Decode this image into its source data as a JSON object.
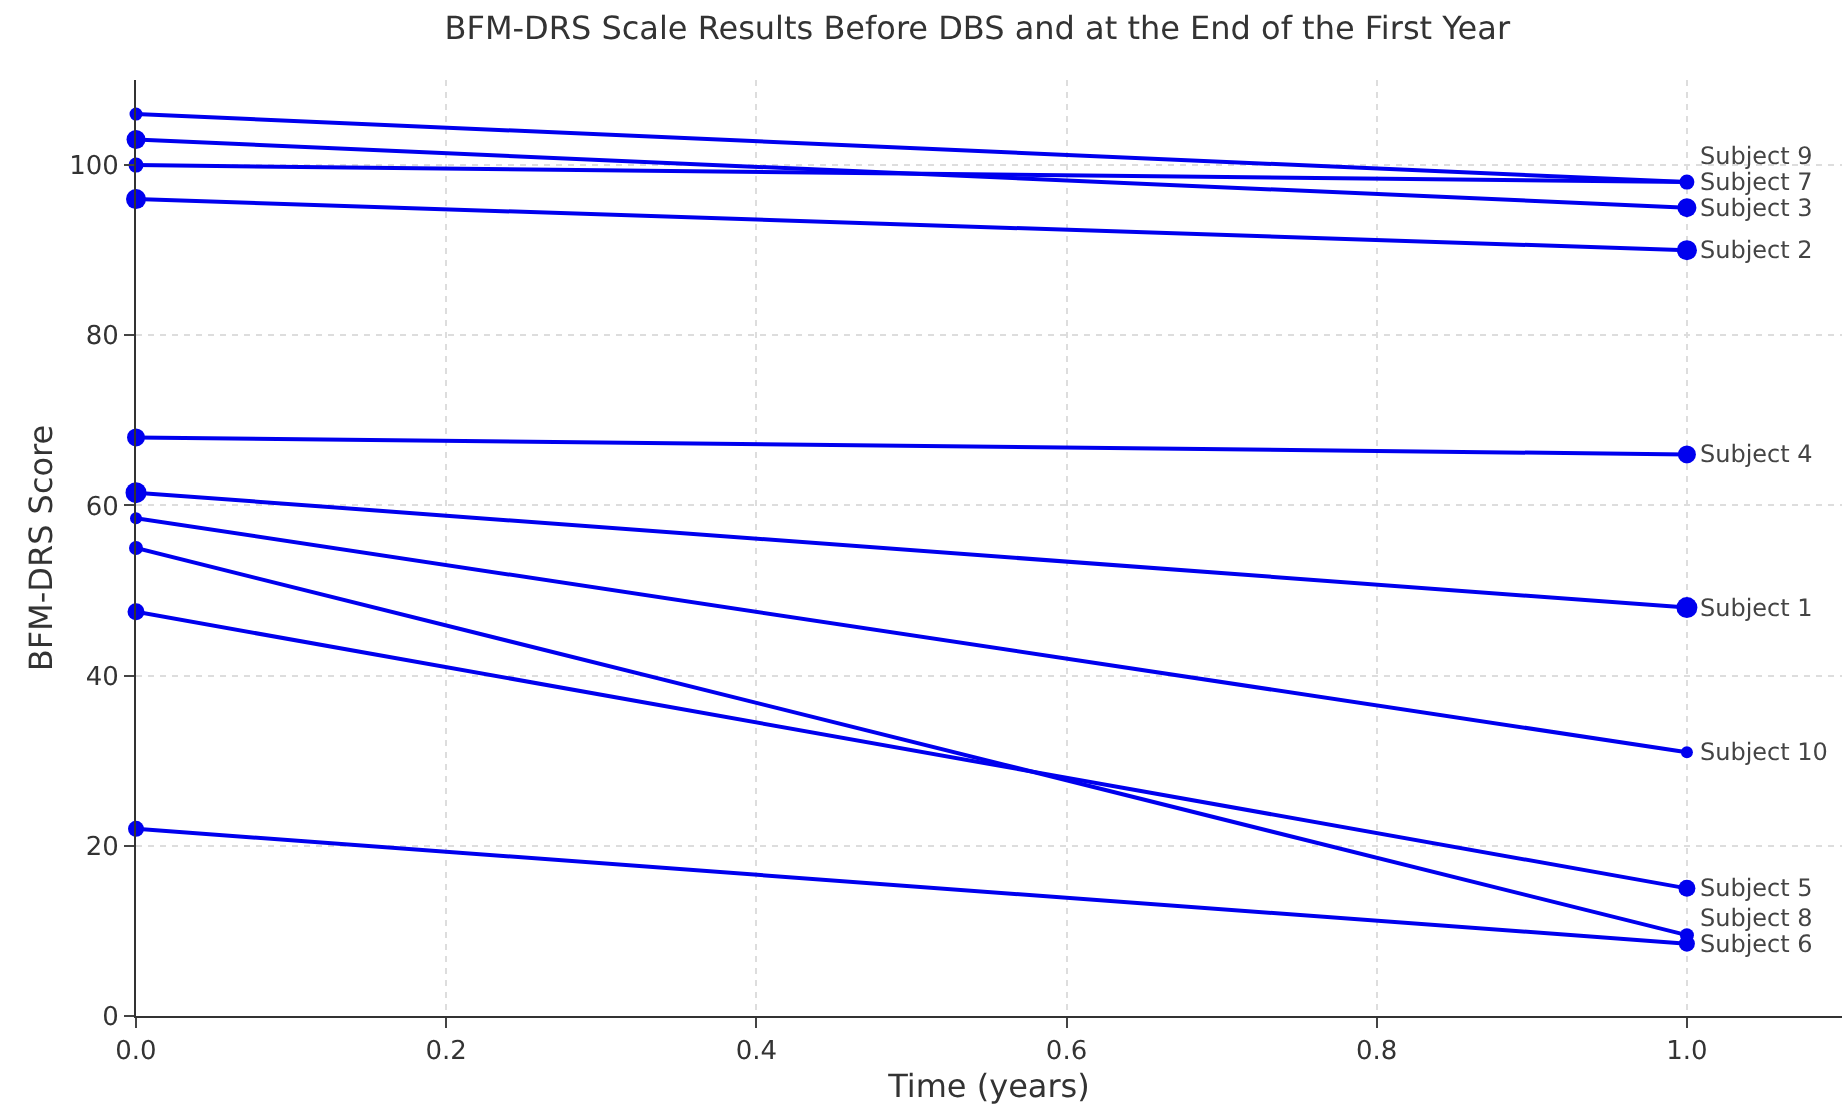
{
  "chart_data": {
    "type": "line",
    "title": "BFM-DRS Scale Results Before DBS and at the End of the First Year",
    "xlabel": "Time (years)",
    "ylabel": "BFM-DRS Score",
    "x": [
      0,
      1
    ],
    "series": [
      {
        "name": "Subject 1",
        "color": "#0000ee",
        "values": [
          61.5,
          48
        ]
      },
      {
        "name": "Subject 2",
        "color": "#0000ee",
        "values": [
          96,
          90
        ]
      },
      {
        "name": "Subject 3",
        "color": "#0000ee",
        "values": [
          103,
          95
        ]
      },
      {
        "name": "Subject 4",
        "color": "#0000ee",
        "values": [
          68,
          66
        ]
      },
      {
        "name": "Subject 5",
        "color": "#0000ee",
        "values": [
          47.5,
          15
        ]
      },
      {
        "name": "Subject 6",
        "color": "#0000ee",
        "values": [
          22,
          8.5
        ]
      },
      {
        "name": "Subject 7",
        "color": "#0000ee",
        "values": [
          100,
          98
        ]
      },
      {
        "name": "Subject 8",
        "color": "#0000ee",
        "values": [
          55,
          9.5
        ]
      },
      {
        "name": "Subject 9",
        "color": "#0000ee",
        "values": [
          106,
          98
        ]
      },
      {
        "name": "Subject 10",
        "color": "#0000ee",
        "values": [
          58.5,
          31
        ]
      }
    ],
    "xlim": [
      0,
      1.1
    ],
    "xticks": [
      {
        "value": 0,
        "label": "0.0"
      },
      {
        "value": 0.2,
        "label": "0.2"
      },
      {
        "value": 0.4,
        "label": "0.4"
      },
      {
        "value": 0.6,
        "label": "0.6"
      },
      {
        "value": 0.8,
        "label": "0.8"
      },
      {
        "value": 1,
        "label": "1.0"
      }
    ],
    "ylim": [
      0,
      110
    ],
    "yticks": [
      0,
      20,
      40,
      60,
      80,
      100
    ],
    "grid": true,
    "legend": false,
    "marker": "circle",
    "line_style": "solid"
  }
}
